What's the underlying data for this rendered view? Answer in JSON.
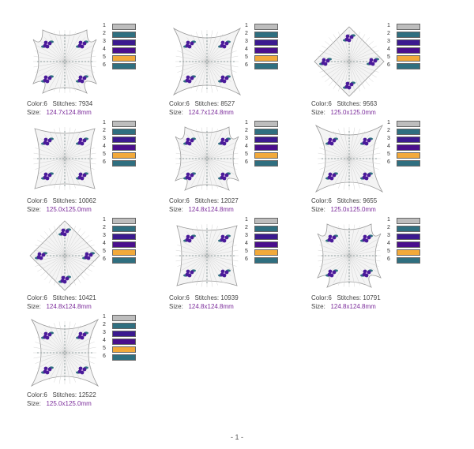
{
  "palette": {
    "colors": [
      "#bdbdbd",
      "#2f6f80",
      "#3b1a8f",
      "#4a0f8c",
      "#f2a93a",
      "#2f6f80"
    ],
    "numbers": [
      "1",
      "2",
      "3",
      "4",
      "5",
      "6"
    ]
  },
  "labels": {
    "color": "Color:",
    "stitches": "Stitches:",
    "size": "Size:"
  },
  "designs": [
    {
      "colors": "6",
      "stitches": "7934",
      "size": "124.7x124.8mm"
    },
    {
      "colors": "6",
      "stitches": "8527",
      "size": "124.7x124.8mm"
    },
    {
      "colors": "6",
      "stitches": "9563",
      "size": "125.0x125.0mm"
    },
    {
      "colors": "6",
      "stitches": "10062",
      "size": "125.0x125.0mm"
    },
    {
      "colors": "6",
      "stitches": "12027",
      "size": "124.8x124.8mm"
    },
    {
      "colors": "6",
      "stitches": "9655",
      "size": "125.0x125.0mm"
    },
    {
      "colors": "6",
      "stitches": "10421",
      "size": "124.8x124.8mm"
    },
    {
      "colors": "6",
      "stitches": "10939",
      "size": "124.8x124.8mm"
    },
    {
      "colors": "6",
      "stitches": "10791",
      "size": "124.8x124.8mm"
    },
    {
      "colors": "6",
      "stitches": "12522",
      "size": "125.0x125.0mm"
    }
  ],
  "footer": {
    "page": "- 1 -"
  }
}
